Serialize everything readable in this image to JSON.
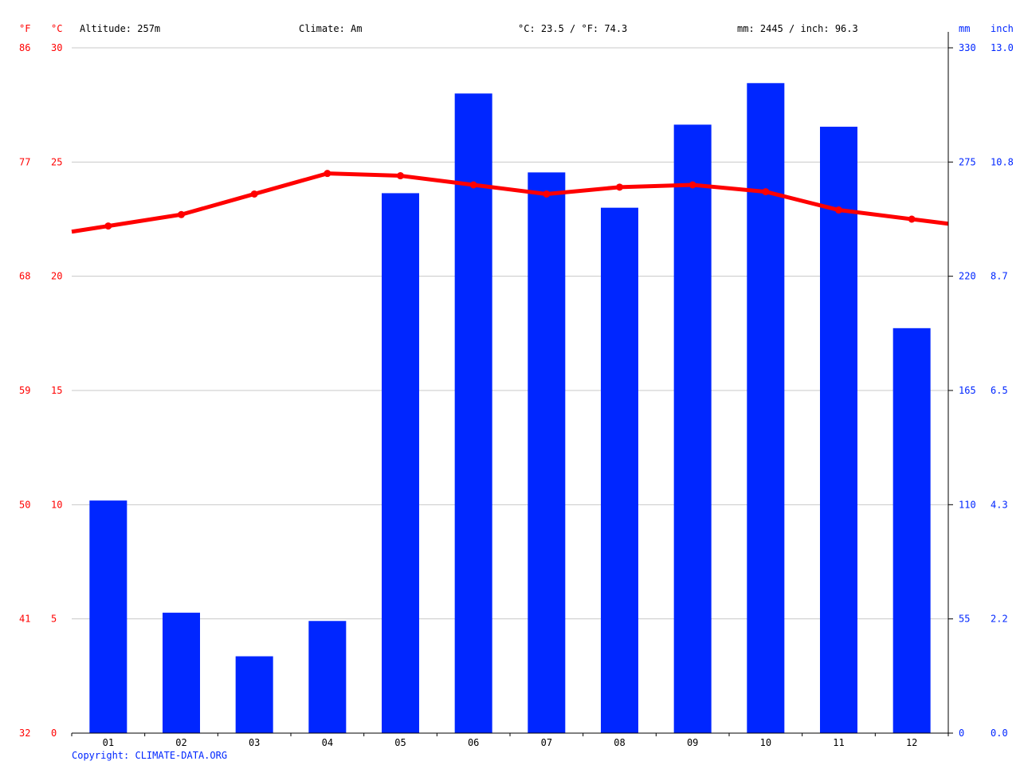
{
  "header": {
    "altitude": "Altitude: 257m",
    "climate": "Climate: Am",
    "temp_avg": "°C: 23.5 / °F: 74.3",
    "precip_total": "mm: 2445 / inch: 96.3"
  },
  "axes": {
    "f_unit": "°F",
    "c_unit": "°C",
    "mm_unit": "mm",
    "inch_unit": "inch",
    "f_ticks": [
      "86",
      "77",
      "68",
      "59",
      "50",
      "41",
      "32"
    ],
    "c_ticks": [
      "30",
      "25",
      "20",
      "15",
      "10",
      "5",
      "0"
    ],
    "mm_ticks": [
      "330",
      "275",
      "220",
      "165",
      "110",
      "55",
      "0"
    ],
    "inch_ticks": [
      "13.0",
      "10.8",
      "8.7",
      "6.5",
      "4.3",
      "2.2",
      "0.0"
    ]
  },
  "copyright": "Copyright: CLIMATE-DATA.ORG",
  "colors": {
    "temperature": "#ff0000",
    "precipitation": "#0026ff",
    "grid": "#c8c8c8",
    "axis": "#000000"
  },
  "chart_data": {
    "type": "bar",
    "categories": [
      "01",
      "02",
      "03",
      "04",
      "05",
      "06",
      "07",
      "08",
      "09",
      "10",
      "11",
      "12"
    ],
    "series": [
      {
        "type": "bar",
        "unit": "mm",
        "axis": "right",
        "values": [
          112,
          58,
          37,
          54,
          260,
          308,
          270,
          253,
          293,
          313,
          292,
          195
        ],
        "ylim": [
          0,
          330
        ]
      },
      {
        "type": "line",
        "unit": "°C",
        "axis": "left",
        "values": [
          22.2,
          22.7,
          23.6,
          24.5,
          24.4,
          24.0,
          23.6,
          23.9,
          24.0,
          23.7,
          22.9,
          22.5
        ],
        "ylim": [
          0,
          30
        ]
      }
    ],
    "grid": true
  }
}
